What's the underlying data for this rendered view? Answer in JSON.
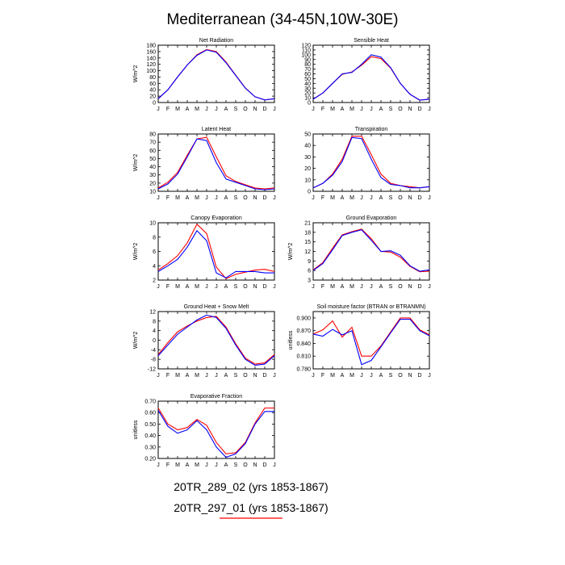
{
  "figure": {
    "title": "Mediterranean (34-45N,10W-30E)",
    "legend": [
      {
        "label": "20TR_289_02 (yrs 1853-1867)",
        "color": "#0000ff"
      },
      {
        "label": "20TR_297_01 (yrs 1853-1867)",
        "color": "#ff0000"
      }
    ]
  },
  "months": [
    "J",
    "F",
    "M",
    "A",
    "M",
    "J",
    "J",
    "A",
    "S",
    "O",
    "N",
    "D",
    "J"
  ],
  "colors": {
    "series_a": "#0000ff",
    "series_b": "#ff0000"
  },
  "chart_data": [
    {
      "type": "line",
      "title": "Net Radiation",
      "ylabel": "W/m^2",
      "ylim": [
        0,
        180
      ],
      "yticks": [
        "0",
        "20",
        "40",
        "60",
        "80",
        "100",
        "120",
        "140",
        "160",
        "180"
      ],
      "series": [
        {
          "name": "20TR_289_02 (yrs 1853-1867)",
          "values": [
            12,
            40,
            80,
            118,
            148,
            165,
            158,
            125,
            85,
            45,
            18,
            8,
            12
          ]
        },
        {
          "name": "20TR_297_01 (yrs 1853-1867)",
          "values": [
            12,
            40,
            80,
            118,
            150,
            166,
            160,
            127,
            86,
            46,
            18,
            8,
            12
          ]
        }
      ]
    },
    {
      "type": "line",
      "title": "Sensible Heat",
      "ylabel": "",
      "ylim": [
        0,
        120
      ],
      "yticks": [
        "0",
        "10",
        "20",
        "30",
        "40",
        "50",
        "60",
        "70",
        "80",
        "90",
        "100",
        "110",
        "120"
      ],
      "series": [
        {
          "name": "20TR_289_02 (yrs 1853-1867)",
          "values": [
            7,
            20,
            40,
            60,
            63,
            80,
            100,
            95,
            73,
            40,
            17,
            5,
            7
          ]
        },
        {
          "name": "20TR_297_01 (yrs 1853-1867)",
          "values": [
            7,
            20,
            40,
            59,
            64,
            78,
            96,
            92,
            72,
            40,
            17,
            5,
            7
          ]
        }
      ]
    },
    {
      "type": "line",
      "title": "Latent Heat",
      "ylabel": "W/m^2",
      "ylim": [
        10,
        80
      ],
      "yticks": [
        "10",
        "20",
        "30",
        "40",
        "50",
        "60",
        "70",
        "80"
      ],
      "series": [
        {
          "name": "20TR_289_02 (yrs 1853-1867)",
          "values": [
            13,
            19,
            31,
            52,
            74,
            72,
            45,
            25,
            21,
            17,
            13,
            12,
            13
          ]
        },
        {
          "name": "20TR_297_01 (yrs 1853-1867)",
          "values": [
            14,
            21,
            33,
            54,
            74,
            76,
            52,
            29,
            22,
            18,
            14,
            13,
            14
          ]
        }
      ]
    },
    {
      "type": "line",
      "title": "Transpiration",
      "ylabel": "",
      "ylim": [
        0,
        50
      ],
      "yticks": [
        "0",
        "10",
        "20",
        "30",
        "40",
        "50"
      ],
      "series": [
        {
          "name": "20TR_289_02 (yrs 1853-1867)",
          "values": [
            3,
            7,
            14,
            26,
            47,
            46,
            28,
            12,
            6,
            5,
            3,
            3,
            4
          ]
        },
        {
          "name": "20TR_297_01 (yrs 1853-1867)",
          "values": [
            3,
            7,
            15,
            28,
            48,
            48,
            32,
            15,
            7,
            5,
            4,
            3,
            4
          ]
        }
      ]
    },
    {
      "type": "line",
      "title": "Canopy Evaporation",
      "ylabel": "W/m^2",
      "ylim": [
        2,
        10
      ],
      "yticks": [
        "2",
        "4",
        "6",
        "8",
        "10"
      ],
      "series": [
        {
          "name": "20TR_289_02 (yrs 1853-1867)",
          "values": [
            3.2,
            4.0,
            4.9,
            6.6,
            8.9,
            7.5,
            3.0,
            2.3,
            3.2,
            3.2,
            3.2,
            3.0,
            3.0
          ]
        },
        {
          "name": "20TR_297_01 (yrs 1853-1867)",
          "values": [
            3.4,
            4.3,
            5.4,
            7.2,
            9.8,
            8.5,
            3.8,
            2.2,
            2.8,
            3.1,
            3.4,
            3.5,
            3.2
          ]
        }
      ]
    },
    {
      "type": "line",
      "title": "Ground Evaporation",
      "ylabel": "W/m^2",
      "ylim": [
        3,
        21
      ],
      "yticks": [
        "3",
        "6",
        "9",
        "12",
        "15",
        "18",
        "21"
      ],
      "series": [
        {
          "name": "20TR_289_02 (yrs 1853-1867)",
          "values": [
            6.0,
            8.2,
            12.5,
            17.0,
            18.0,
            18.8,
            15.5,
            12.0,
            12.2,
            10.8,
            7.5,
            5.8,
            6.2
          ]
        },
        {
          "name": "20TR_297_01 (yrs 1853-1867)",
          "values": [
            6.2,
            8.5,
            13.0,
            17.2,
            18.2,
            19.0,
            16.0,
            12.0,
            11.8,
            10.2,
            7.3,
            5.6,
            5.8
          ]
        }
      ]
    },
    {
      "type": "line",
      "title": "Ground Heat + Snow Melt",
      "ylabel": "W/m^2",
      "ylim": [
        -12,
        12
      ],
      "yticks": [
        "-12",
        "-8",
        "-4",
        "0",
        "4",
        "8",
        "12"
      ],
      "series": [
        {
          "name": "20TR_289_02 (yrs 1853-1867)",
          "values": [
            -6.5,
            -2.0,
            2.5,
            5.5,
            8.5,
            10.5,
            9.5,
            5.0,
            -2.0,
            -8.0,
            -10.5,
            -10.0,
            -6.5
          ]
        },
        {
          "name": "20TR_297_01 (yrs 1853-1867)",
          "values": [
            -6.0,
            -1.0,
            3.5,
            6.0,
            8.0,
            9.5,
            10.0,
            5.5,
            -1.5,
            -7.5,
            -10.0,
            -9.5,
            -6.0
          ]
        }
      ]
    },
    {
      "type": "line",
      "title": "Soil moisture factor (BTRAN or BTRANMN)",
      "ylabel": "unitless",
      "ylim": [
        0.78,
        0.915
      ],
      "yticks": [
        "0.780",
        "0.810",
        "0.840",
        "0.870",
        "0.900"
      ],
      "series": [
        {
          "name": "20TR_289_02 (yrs 1853-1867)",
          "values": [
            0.862,
            0.857,
            0.873,
            0.86,
            0.87,
            0.79,
            0.8,
            0.832,
            0.865,
            0.897,
            0.897,
            0.87,
            0.858
          ]
        },
        {
          "name": "20TR_297_01 (yrs 1853-1867)",
          "values": [
            0.862,
            0.872,
            0.893,
            0.855,
            0.878,
            0.81,
            0.81,
            0.834,
            0.867,
            0.9,
            0.9,
            0.872,
            0.86
          ]
        }
      ]
    },
    {
      "type": "line",
      "title": "Evaporative Fraction",
      "ylabel": "unitless",
      "ylim": [
        0.2,
        0.7
      ],
      "yticks": [
        "0.20",
        "0.30",
        "0.40",
        "0.50",
        "0.60",
        "0.70"
      ],
      "series": [
        {
          "name": "20TR_289_02 (yrs 1853-1867)",
          "values": [
            0.62,
            0.48,
            0.42,
            0.45,
            0.53,
            0.45,
            0.3,
            0.21,
            0.24,
            0.33,
            0.5,
            0.61,
            0.61
          ]
        },
        {
          "name": "20TR_297_01 (yrs 1853-1867)",
          "values": [
            0.64,
            0.5,
            0.45,
            0.47,
            0.54,
            0.49,
            0.34,
            0.24,
            0.25,
            0.34,
            0.51,
            0.64,
            0.64
          ]
        }
      ]
    }
  ]
}
